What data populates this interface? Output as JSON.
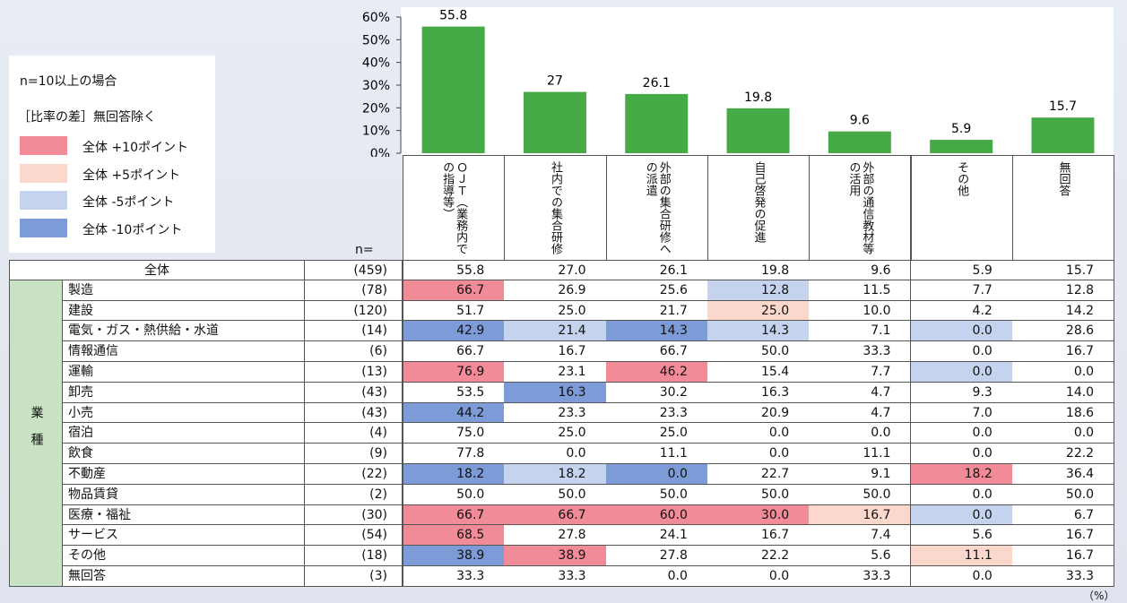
{
  "notes": {
    "condition": "n=10以上の場合",
    "difference": "［比率の差］無回答除く"
  },
  "legend": [
    {
      "label": "全体 +10ポイント",
      "color": "#f28b98"
    },
    {
      "label": "全体 +5ポイント",
      "color": "#fcd8cc"
    },
    {
      "label": "全体 -5ポイント",
      "color": "#c6d3ee"
    },
    {
      "label": "全体 -10ポイント",
      "color": "#7d9bd6"
    }
  ],
  "chart_data": {
    "type": "bar",
    "categories": [
      "ＯＪＴ（業務内での指導等）",
      "社内での集合研修",
      "外部の集合研修への派遣",
      "自己啓発の促進",
      "外部の通信教材等の活用",
      "その他",
      "無回答"
    ],
    "values": [
      55.8,
      27.0,
      26.1,
      19.8,
      9.6,
      5.9,
      15.7
    ],
    "color": "#46aa46",
    "ylim": [
      0,
      60
    ],
    "yticks": [
      {
        "value": 0,
        "label": "0%"
      },
      {
        "value": 10,
        "label": "10%"
      },
      {
        "value": 20,
        "label": "20%"
      },
      {
        "value": 30,
        "label": "30%"
      },
      {
        "value": 40,
        "label": "40%"
      },
      {
        "value": 50,
        "label": "50%"
      },
      {
        "value": 60,
        "label": "60%"
      }
    ]
  },
  "table": {
    "n_header": "n=",
    "unit": "（%）",
    "group_label": "業種",
    "total": {
      "label": "全体",
      "n": "(459)",
      "cells": [
        "55.8",
        "27.0",
        "26.1",
        "19.8",
        "9.6",
        "5.9",
        "15.7"
      ]
    },
    "rows": [
      {
        "label": "製造",
        "n": "(78)",
        "cells": [
          "66.7",
          "26.9",
          "25.6",
          "12.8",
          "11.5",
          "7.7",
          "12.8"
        ],
        "colors": [
          "#f28b98",
          null,
          null,
          "#c6d3ee",
          null,
          null,
          null
        ]
      },
      {
        "label": "建設",
        "n": "(120)",
        "cells": [
          "51.7",
          "25.0",
          "21.7",
          "25.0",
          "10.0",
          "4.2",
          "14.2"
        ],
        "colors": [
          null,
          null,
          null,
          "#fcd8cc",
          null,
          null,
          null
        ]
      },
      {
        "label": "電気・ガス・熱供給・水道",
        "n": "(14)",
        "cells": [
          "42.9",
          "21.4",
          "14.3",
          "14.3",
          "7.1",
          "0.0",
          "28.6"
        ],
        "colors": [
          "#7d9bd6",
          "#c6d3ee",
          "#7d9bd6",
          "#c6d3ee",
          null,
          "#c6d3ee",
          null
        ]
      },
      {
        "label": "情報通信",
        "n": "(6)",
        "cells": [
          "66.7",
          "16.7",
          "66.7",
          "50.0",
          "33.3",
          "0.0",
          "16.7"
        ],
        "colors": [
          null,
          null,
          null,
          null,
          null,
          null,
          null
        ]
      },
      {
        "label": "運輸",
        "n": "(13)",
        "cells": [
          "76.9",
          "23.1",
          "46.2",
          "15.4",
          "7.7",
          "0.0",
          "0.0"
        ],
        "colors": [
          "#f28b98",
          null,
          "#f28b98",
          null,
          null,
          "#c6d3ee",
          null
        ]
      },
      {
        "label": "卸売",
        "n": "(43)",
        "cells": [
          "53.5",
          "16.3",
          "30.2",
          "16.3",
          "4.7",
          "9.3",
          "14.0"
        ],
        "colors": [
          null,
          "#7d9bd6",
          null,
          null,
          null,
          null,
          null
        ]
      },
      {
        "label": "小売",
        "n": "(43)",
        "cells": [
          "44.2",
          "23.3",
          "23.3",
          "20.9",
          "4.7",
          "7.0",
          "18.6"
        ],
        "colors": [
          "#7d9bd6",
          null,
          null,
          null,
          null,
          null,
          null
        ]
      },
      {
        "label": "宿泊",
        "n": "(4)",
        "cells": [
          "75.0",
          "25.0",
          "25.0",
          "0.0",
          "0.0",
          "0.0",
          "0.0"
        ],
        "colors": [
          null,
          null,
          null,
          null,
          null,
          null,
          null
        ]
      },
      {
        "label": "飲食",
        "n": "(9)",
        "cells": [
          "77.8",
          "0.0",
          "11.1",
          "0.0",
          "11.1",
          "0.0",
          "22.2"
        ],
        "colors": [
          null,
          null,
          null,
          null,
          null,
          null,
          null
        ]
      },
      {
        "label": "不動産",
        "n": "(22)",
        "cells": [
          "18.2",
          "18.2",
          "0.0",
          "22.7",
          "9.1",
          "18.2",
          "36.4"
        ],
        "colors": [
          "#7d9bd6",
          "#c6d3ee",
          "#7d9bd6",
          null,
          null,
          "#f28b98",
          null
        ]
      },
      {
        "label": "物品賃貸",
        "n": "(2)",
        "cells": [
          "50.0",
          "50.0",
          "50.0",
          "50.0",
          "50.0",
          "0.0",
          "50.0"
        ],
        "colors": [
          null,
          null,
          null,
          null,
          null,
          null,
          null
        ]
      },
      {
        "label": "医療・福祉",
        "n": "(30)",
        "cells": [
          "66.7",
          "66.7",
          "60.0",
          "30.0",
          "16.7",
          "0.0",
          "6.7"
        ],
        "colors": [
          "#f28b98",
          "#f28b98",
          "#f28b98",
          "#f28b98",
          "#fcd8cc",
          "#c6d3ee",
          null
        ]
      },
      {
        "label": "サービス",
        "n": "(54)",
        "cells": [
          "68.5",
          "27.8",
          "24.1",
          "16.7",
          "7.4",
          "5.6",
          "16.7"
        ],
        "colors": [
          "#f28b98",
          null,
          null,
          null,
          null,
          null,
          null
        ]
      },
      {
        "label": "その他",
        "n": "(18)",
        "cells": [
          "38.9",
          "38.9",
          "27.8",
          "22.2",
          "5.6",
          "11.1",
          "16.7"
        ],
        "colors": [
          "#7d9bd6",
          "#f28b98",
          null,
          null,
          null,
          "#fcd8cc",
          null
        ]
      },
      {
        "label": "無回答",
        "n": "(3)",
        "cells": [
          "33.3",
          "33.3",
          "0.0",
          "0.0",
          "33.3",
          "0.0",
          "33.3"
        ],
        "colors": [
          null,
          null,
          null,
          null,
          null,
          null,
          null
        ]
      }
    ]
  }
}
